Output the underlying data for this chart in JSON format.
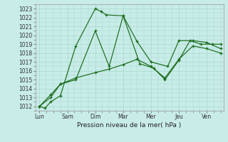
{
  "xlabel": "Pression niveau de la mer( hPa )",
  "background_color": "#c8ece8",
  "grid_color": "#a8d8cc",
  "line_color": "#1a6b1a",
  "ylim": [
    1011.5,
    1023.5
  ],
  "yticks": [
    1012,
    1013,
    1014,
    1015,
    1016,
    1017,
    1018,
    1019,
    1020,
    1021,
    1022,
    1023
  ],
  "x_labels": [
    "Lun",
    "Sam",
    "Dim",
    "Mar",
    "Mer",
    "Jeu",
    "Ven"
  ],
  "x_positions": [
    0,
    1,
    2,
    3,
    4,
    5,
    6
  ],
  "xlim": [
    -0.15,
    6.6
  ],
  "series": [
    {
      "x": [
        0.0,
        0.2,
        0.4,
        0.75,
        1.3,
        2.0,
        2.2,
        2.4,
        3.0,
        3.5,
        4.0,
        4.6,
        5.0,
        5.5,
        6.0,
        6.5
      ],
      "y": [
        1012.0,
        1011.8,
        1012.5,
        1013.2,
        1018.8,
        1023.0,
        1022.7,
        1022.3,
        1022.2,
        1019.3,
        1017.0,
        1016.5,
        1019.4,
        1019.4,
        1019.2,
        1018.5
      ]
    },
    {
      "x": [
        0.0,
        0.4,
        0.75,
        1.3,
        2.0,
        2.5,
        3.0,
        3.6,
        4.1,
        4.5,
        5.0,
        5.4,
        5.8,
        6.2,
        6.5
      ],
      "y": [
        1012.0,
        1013.0,
        1014.5,
        1015.0,
        1020.5,
        1016.5,
        1022.2,
        1016.8,
        1016.3,
        1015.0,
        1017.2,
        1019.4,
        1019.0,
        1019.0,
        1019.0
      ]
    },
    {
      "x": [
        0.0,
        0.4,
        0.75,
        1.3,
        2.0,
        2.5,
        3.0,
        3.5,
        4.0,
        4.5,
        5.0,
        5.5,
        6.0,
        6.5
      ],
      "y": [
        1012.0,
        1013.3,
        1014.5,
        1015.2,
        1015.8,
        1016.2,
        1016.7,
        1017.3,
        1016.5,
        1015.2,
        1017.3,
        1018.8,
        1018.5,
        1018.0
      ]
    }
  ]
}
